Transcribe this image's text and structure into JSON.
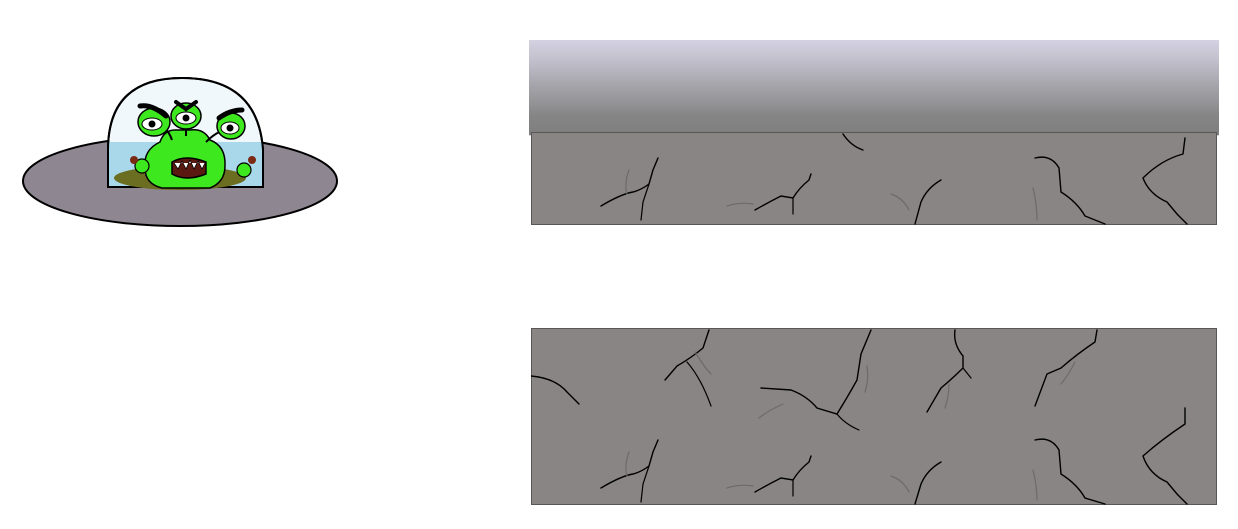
{
  "scene": {
    "sky_color": "#ffffff",
    "rock_color": "#898584",
    "rock_border_color": "#5a5656",
    "crack_dark_color": "#000000",
    "crack_light_color": "#6f6a6a",
    "cave_top_gradient": [
      "#d4d2e2",
      "#a3a2a8",
      "#7f7e7e"
    ]
  },
  "player": {
    "sprite": "alien-ufo-icon",
    "saucer_color": "#8e8690",
    "dome_color": "#e7f6ff",
    "water_color": "#a9d8ea",
    "alien_color": "#3ee81f",
    "alien_eyes": 3
  }
}
